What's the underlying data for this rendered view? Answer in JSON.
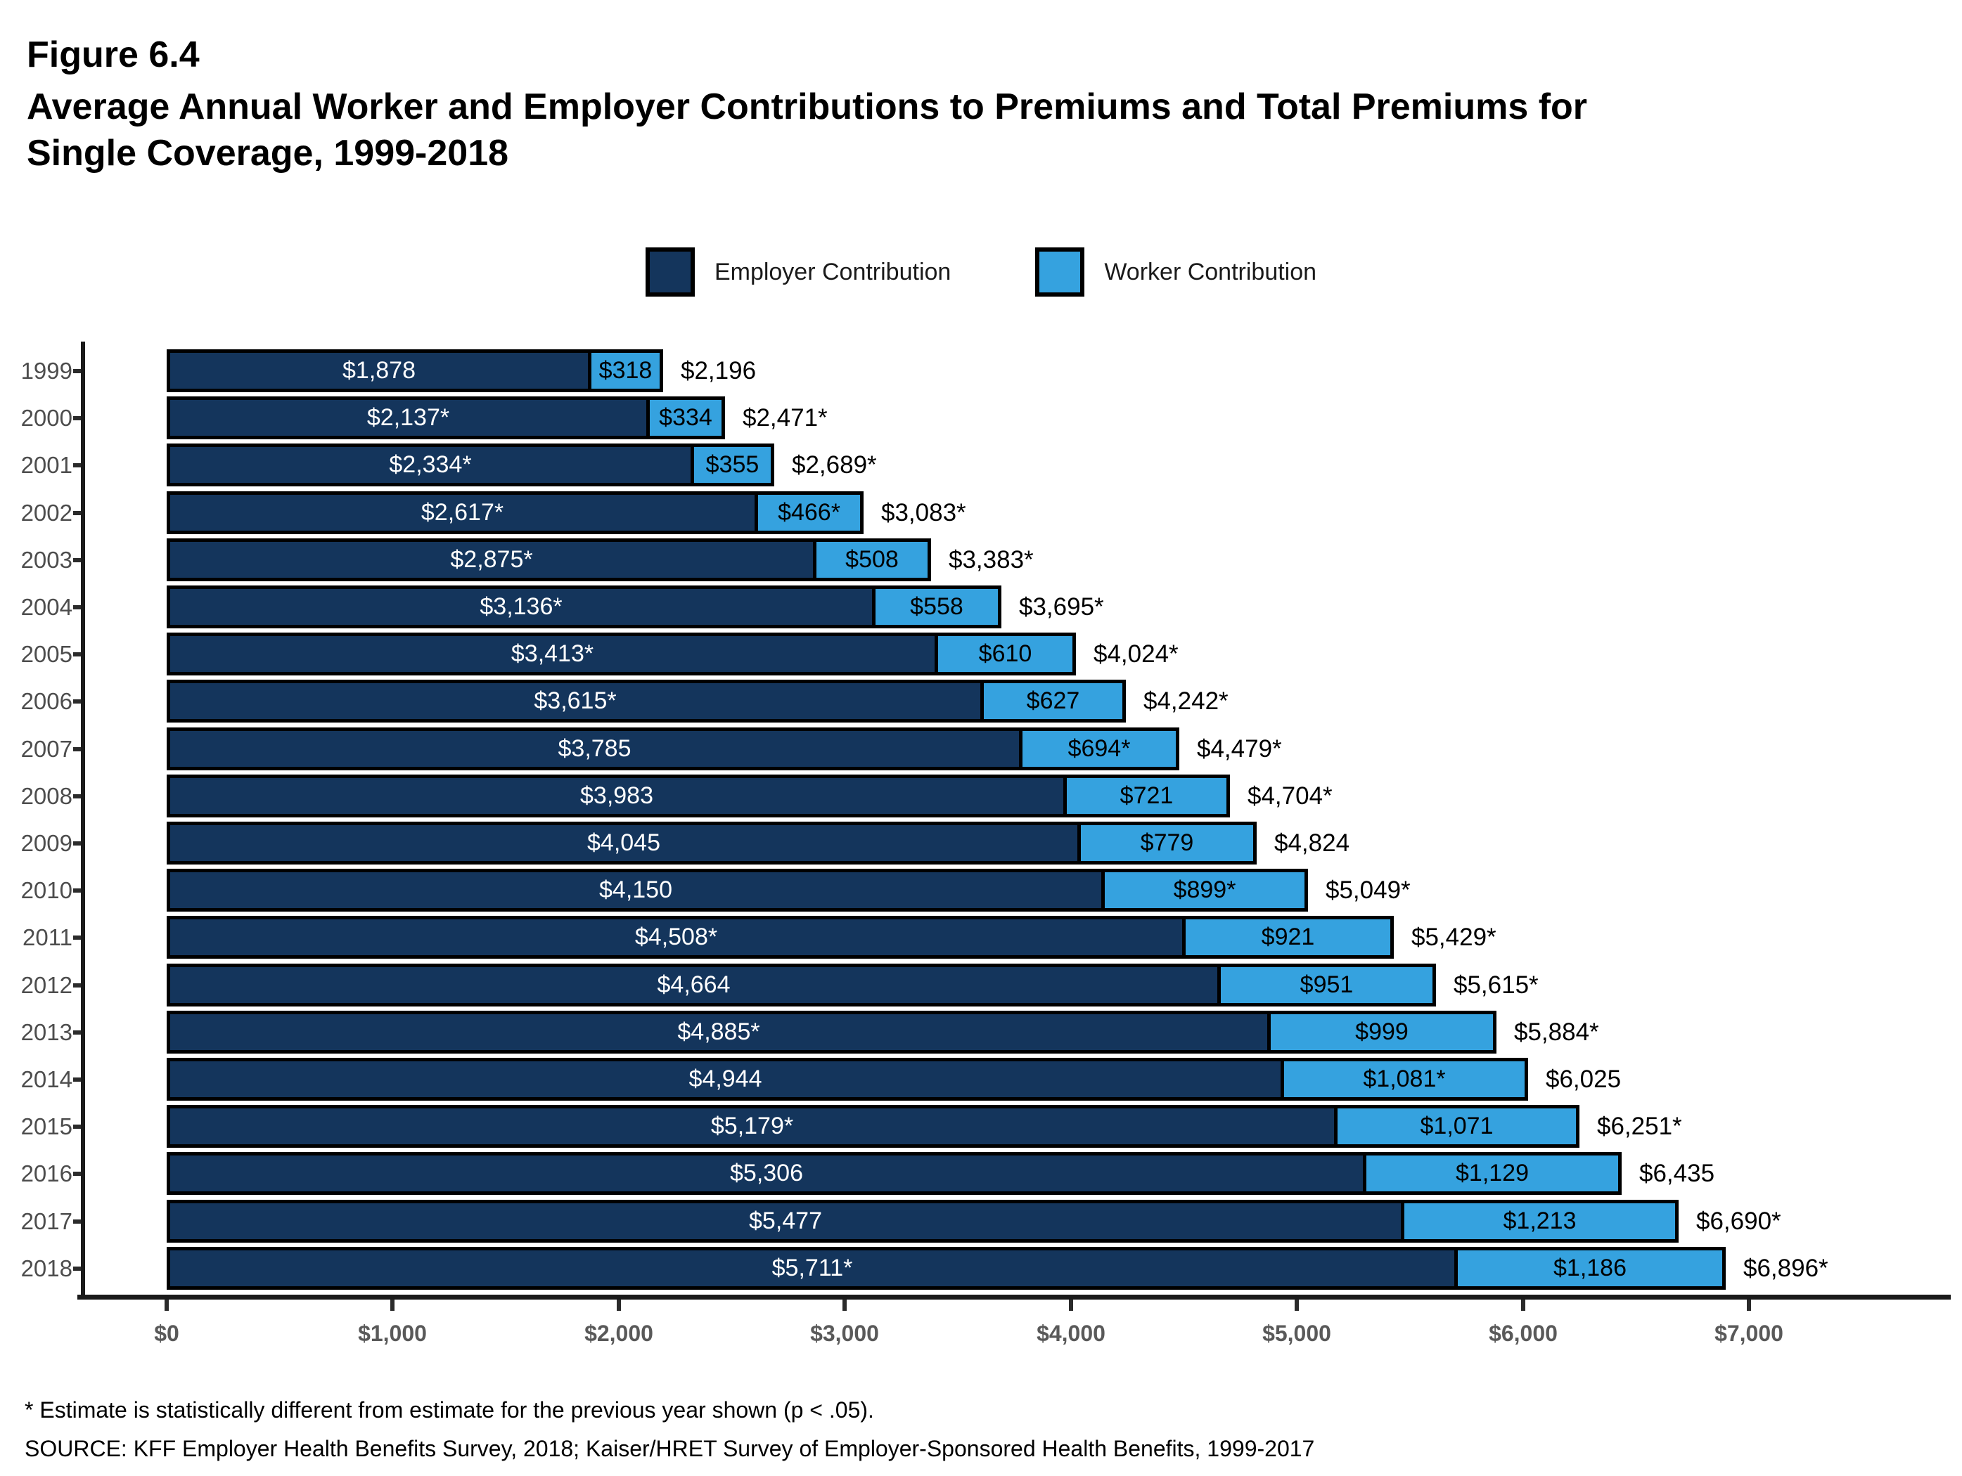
{
  "header": {
    "figure_label": "Figure 6.4",
    "title_line1": "Average Annual Worker and Employer Contributions to Premiums and Total Premiums for",
    "title_line2": "Single Coverage, 1999-2018"
  },
  "legend": {
    "items": [
      {
        "label": "Employer Contribution",
        "color": "#14355C"
      },
      {
        "label": "Worker Contribution",
        "color": "#35A2DF"
      }
    ]
  },
  "footnotes": [
    "* Estimate is statistically different from estimate for the previous year shown (p < .05).",
    "SOURCE: KFF Employer Health Benefits Survey, 2018; Kaiser/HRET Survey of Employer-Sponsored Health Benefits, 1999-2017"
  ],
  "chart_data": {
    "type": "bar",
    "orientation": "horizontal",
    "stacked": true,
    "title": "Average Annual Worker and Employer Contributions to Premiums and Total Premiums for Single Coverage, 1999-2018",
    "xlabel": "",
    "ylabel": "",
    "xlim": [
      0,
      7000
    ],
    "x_tick_labels": [
      "$0",
      "$1,000",
      "$2,000",
      "$3,000",
      "$4,000",
      "$5,000",
      "$6,000",
      "$7,000"
    ],
    "x_tick_values": [
      0,
      1000,
      2000,
      3000,
      4000,
      5000,
      6000,
      7000
    ],
    "grid": false,
    "legend_position": "top-center",
    "categories": [
      "1999",
      "2000",
      "2001",
      "2002",
      "2003",
      "2004",
      "2005",
      "2006",
      "2007",
      "2008",
      "2009",
      "2010",
      "2011",
      "2012",
      "2013",
      "2014",
      "2015",
      "2016",
      "2017",
      "2018"
    ],
    "series": [
      {
        "name": "Employer Contribution",
        "color": "#14355C",
        "label_color": "#ffffff",
        "values": [
          1878,
          2137,
          2334,
          2617,
          2875,
          3136,
          3413,
          3615,
          3785,
          3983,
          4045,
          4150,
          4508,
          4664,
          4885,
          4944,
          5179,
          5306,
          5477,
          5711
        ],
        "labels": [
          "$1,878",
          "$2,137*",
          "$2,334*",
          "$2,617*",
          "$2,875*",
          "$3,136*",
          "$3,413*",
          "$3,615*",
          "$3,785",
          "$3,983",
          "$4,045",
          "$4,150",
          "$4,508*",
          "$4,664",
          "$4,885*",
          "$4,944",
          "$5,179*",
          "$5,306",
          "$5,477",
          "$5,711*"
        ]
      },
      {
        "name": "Worker Contribution",
        "color": "#35A2DF",
        "label_color": "#000000",
        "values": [
          318,
          334,
          355,
          466,
          508,
          558,
          610,
          627,
          694,
          721,
          779,
          899,
          921,
          951,
          999,
          1081,
          1071,
          1129,
          1213,
          1186
        ],
        "labels": [
          "$318",
          "$334",
          "$355",
          "$466*",
          "$508",
          "$558",
          "$610",
          "$627",
          "$694*",
          "$721",
          "$779",
          "$899*",
          "$921",
          "$951",
          "$999",
          "$1,081*",
          "$1,071",
          "$1,129",
          "$1,213",
          "$1,186"
        ]
      }
    ],
    "totals": {
      "values": [
        2196,
        2471,
        2689,
        3083,
        3383,
        3695,
        4024,
        4242,
        4479,
        4704,
        4824,
        5049,
        5429,
        5615,
        5884,
        6025,
        6251,
        6435,
        6690,
        6896
      ],
      "labels": [
        "$2,196",
        "$2,471*",
        "$2,689*",
        "$3,083*",
        "$3,383*",
        "$3,695*",
        "$4,024*",
        "$4,242*",
        "$4,479*",
        "$4,704*",
        "$4,824",
        "$5,049*",
        "$5,429*",
        "$5,615*",
        "$5,884*",
        "$6,025",
        "$6,251*",
        "$6,435",
        "$6,690*",
        "$6,896*"
      ]
    }
  }
}
